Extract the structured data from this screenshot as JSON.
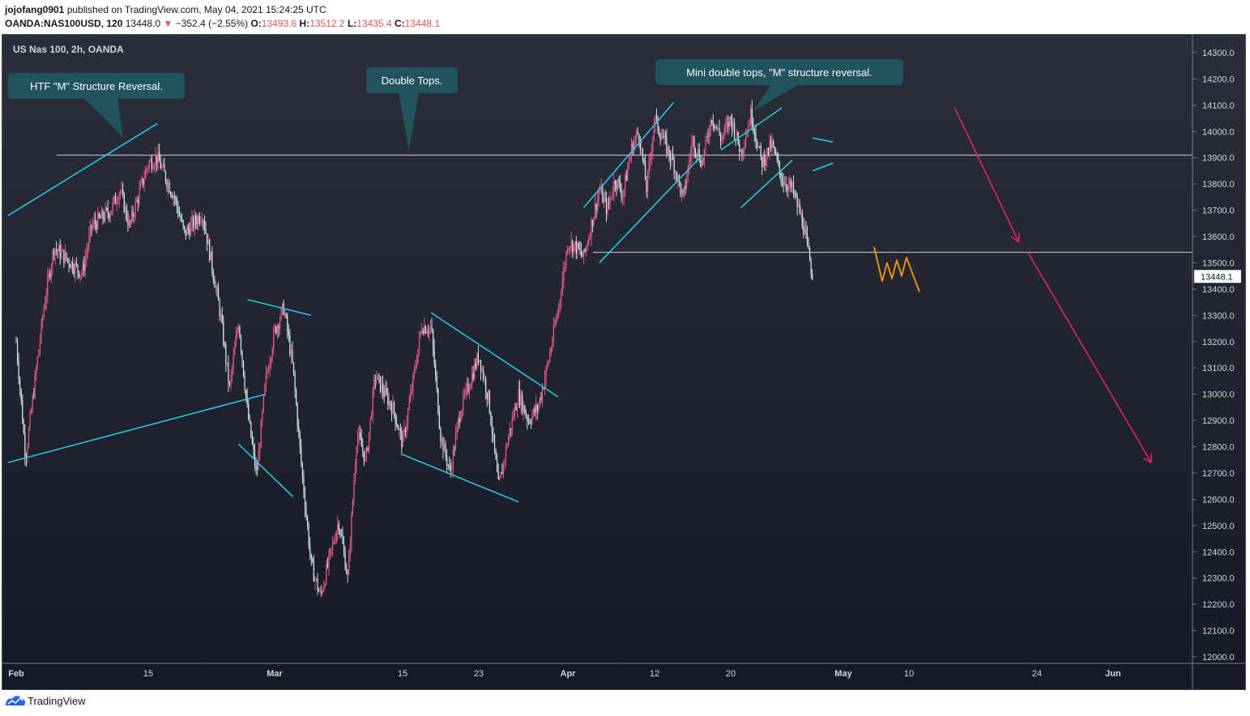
{
  "header": {
    "author": "jojofang0901",
    "published": "published on TradingView.com, May 04, 2021 15:24:25 UTC",
    "symbol": "OANDA:NAS100USD, 120",
    "last": "13448.0",
    "change": "−352.4 (−2.55%)",
    "o_label": "O:",
    "o_value": "13493.6",
    "h_label": "H:",
    "h_value": "13512.2",
    "l_label": "L:",
    "l_value": "13435.4",
    "c_label": "C:",
    "c_value": "13448.1"
  },
  "chart_title": "US Nas 100, 2h, OANDA",
  "footer": {
    "brand": "TradingView"
  },
  "colors": {
    "up": "#ef5a8c",
    "down": "#d9eef2",
    "trendline": "#29c5e6",
    "level": "#b2b5be",
    "projection": "#e91e63",
    "scribble": "#ff9800",
    "callout": "#20535e"
  },
  "chart_data": {
    "type": "candlestick",
    "title": "US Nas 100, 2h, OANDA",
    "ylim": [
      11950,
      14360
    ],
    "yticks": [
      "14300.0",
      "14200.0",
      "14100.0",
      "14000.0",
      "13900.0",
      "13800.0",
      "13700.0",
      "13600.0",
      "13500.0",
      "13400.0",
      "13300.0",
      "13200.0",
      "13100.0",
      "13000.0",
      "12900.0",
      "12800.0",
      "12700.0",
      "12600.0",
      "12500.0",
      "12400.0",
      "12300.0",
      "12200.0",
      "12100.0",
      "12000.0"
    ],
    "x_labels": [
      "Feb",
      "15",
      "Mar",
      "15",
      "23",
      "Apr",
      "12",
      "20",
      "May",
      "10",
      "24",
      "Jun"
    ],
    "last_price": "13448.1",
    "price_path": [
      [
        "Feb 1",
        13200
      ],
      [
        "Feb 2",
        12760
      ],
      [
        "Feb 4",
        13350
      ],
      [
        "Feb 5",
        13560
      ],
      [
        "Feb 8",
        13460
      ],
      [
        "Feb 9",
        13640
      ],
      [
        "Feb 11",
        13700
      ],
      [
        "Feb 12",
        13780
      ],
      [
        "Feb 13",
        13640
      ],
      [
        "Feb 14",
        13760
      ],
      [
        "Feb 15",
        13880
      ],
      [
        "Feb 16",
        13900
      ],
      [
        "Feb 18",
        13740
      ],
      [
        "Feb 19",
        13610
      ],
      [
        "Feb 21",
        13690
      ],
      [
        "Feb 22",
        13500
      ],
      [
        "Feb 23",
        13300
      ],
      [
        "Feb 24",
        13020
      ],
      [
        "Feb 25",
        13280
      ],
      [
        "Feb 26",
        12930
      ],
      [
        "Feb 27",
        12690
      ],
      [
        "Feb 28",
        13050
      ],
      [
        "Mar 1",
        13240
      ],
      [
        "Mar 2",
        13330
      ],
      [
        "Mar 3",
        13100
      ],
      [
        "Mar 4",
        12700
      ],
      [
        "Mar 5",
        12350
      ],
      [
        "Mar 6",
        12230
      ],
      [
        "Mar 8",
        12520
      ],
      [
        "Mar 9",
        12300
      ],
      [
        "Mar 10",
        12850
      ],
      [
        "Mar 11",
        12750
      ],
      [
        "Mar 12",
        13070
      ],
      [
        "Mar 14",
        12940
      ],
      [
        "Mar 15",
        12810
      ],
      [
        "Mar 16",
        13030
      ],
      [
        "Mar 17",
        13260
      ],
      [
        "Mar 18",
        13250
      ],
      [
        "Mar 19",
        12840
      ],
      [
        "Mar 20",
        12700
      ],
      [
        "Mar 21",
        12930
      ],
      [
        "Mar 22",
        13040
      ],
      [
        "Mar 23",
        13150
      ],
      [
        "Mar 24",
        12980
      ],
      [
        "Mar 25",
        12640
      ],
      [
        "Mar 26",
        12840
      ],
      [
        "Mar 27",
        13000
      ],
      [
        "Mar 28",
        12900
      ],
      [
        "Mar 29",
        12950
      ],
      [
        "Mar 30",
        13120
      ],
      [
        "Mar 31",
        13320
      ],
      [
        "Apr 1",
        13580
      ],
      [
        "Apr 2",
        13560
      ],
      [
        "Apr 3",
        13520
      ],
      [
        "Apr 4",
        13650
      ],
      [
        "Apr 5",
        13780
      ],
      [
        "Apr 6",
        13700
      ],
      [
        "Apr 7",
        13820
      ],
      [
        "Apr 8",
        13760
      ],
      [
        "Apr 9",
        13930
      ],
      [
        "Apr 10",
        14000
      ],
      [
        "Apr 11",
        13780
      ],
      [
        "Apr 12",
        14050
      ],
      [
        "Apr 13",
        13960
      ],
      [
        "Apr 14",
        13880
      ],
      [
        "Apr 15",
        13740
      ],
      [
        "Apr 16",
        13970
      ],
      [
        "Apr 17",
        13880
      ],
      [
        "Apr 18",
        14060
      ],
      [
        "Apr 19",
        13970
      ],
      [
        "Apr 20",
        14050
      ],
      [
        "Apr 21",
        13920
      ],
      [
        "Apr 22",
        14070
      ],
      [
        "Apr 23",
        13880
      ],
      [
        "Apr 24",
        13950
      ],
      [
        "Apr 25",
        13820
      ],
      [
        "Apr 26",
        13780
      ],
      [
        "Apr 27",
        13660
      ],
      [
        "Apr 28",
        13448
      ]
    ],
    "horizontal_levels": [
      13910,
      13540
    ],
    "trendlines": [
      [
        [
          "Jan 31",
          13680
        ],
        [
          "Feb 16",
          14030
        ]
      ],
      [
        [
          "Jan 31",
          12740
        ],
        [
          "Feb 28",
          13000
        ]
      ],
      [
        [
          "Feb 25",
          12810
        ],
        [
          "Mar 3",
          12610
        ]
      ],
      [
        [
          "Feb 26",
          13360
        ],
        [
          "Mar 5",
          13300
        ]
      ],
      [
        [
          "Mar 15",
          12770
        ],
        [
          "Mar 27",
          12590
        ]
      ],
      [
        [
          "Mar 18",
          13310
        ],
        [
          "Mar 31",
          12990
        ]
      ],
      [
        [
          "Apr 3",
          13710
        ],
        [
          "Apr 14",
          14110
        ]
      ],
      [
        [
          "Apr 5",
          13500
        ],
        [
          "Apr 17",
          13910
        ]
      ],
      [
        [
          "Apr 19",
          13930
        ],
        [
          "Apr 25",
          14090
        ]
      ],
      [
        [
          "Apr 21",
          13710
        ],
        [
          "Apr 26",
          13890
        ]
      ],
      [
        [
          "Apr 28",
          13975
        ],
        [
          "Apr 30",
          13960
        ]
      ],
      [
        [
          "Apr 28",
          13850
        ],
        [
          "Apr 30",
          13880
        ]
      ]
    ],
    "projections": [
      [
        [
          "May 15",
          14090
        ],
        [
          "May 22",
          13580
        ]
      ],
      [
        [
          "May 23",
          13540
        ],
        [
          "Jun 5",
          12740
        ]
      ]
    ],
    "annotations": [
      {
        "text": "HTF \"M\" Structure Reversal.",
        "anchor": [
          "Feb 12",
          13940
        ]
      },
      {
        "text": "Double Tops.",
        "anchor": [
          "Mar 15",
          13930
        ]
      },
      {
        "text": "Mini double tops, \"M\" structure reversal.",
        "anchor": [
          "Apr 20",
          14090
        ]
      }
    ]
  }
}
